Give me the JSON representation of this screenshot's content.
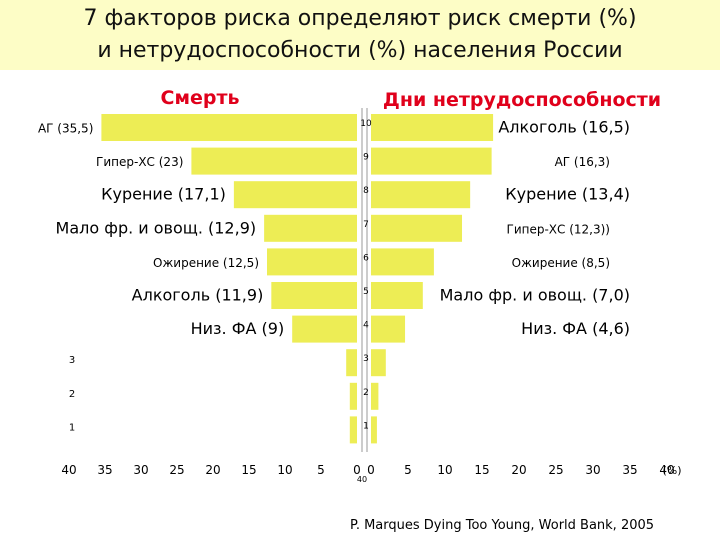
{
  "header": {
    "title_line1": "7  факторов риска определяют риск смерти (%)",
    "title_line2": "и нетрудоспособности (%) населения России"
  },
  "chart_data": {
    "type": "bar",
    "orientation": "horizontal-butterfly",
    "left_title": "Смерть",
    "right_title": "Дни нетрудоспособности",
    "x_ticks_left": [
      "40",
      "35",
      "30",
      "25",
      "20",
      "15",
      "10",
      "5",
      "0"
    ],
    "x_ticks_right": [
      "0",
      "5",
      "10",
      "15",
      "20",
      "25",
      "30",
      "35",
      "40"
    ],
    "x_unit": "(%)",
    "x_extra_label": "40",
    "row_ticks": [
      "10",
      "9",
      "8",
      "7",
      "6",
      "5",
      "4",
      "3",
      "2",
      "1"
    ],
    "left_row_ticks": [
      "3",
      "2",
      "1"
    ],
    "death_series": [
      {
        "label": "АГ (35,5)",
        "value": 35.5
      },
      {
        "label": "Гипер-ХС (23)",
        "value": 23
      },
      {
        "label": "Курение (17,1)",
        "value": 17.1
      },
      {
        "label": "Мало фр. и овощ.  (12,9)",
        "value": 12.9
      },
      {
        "label": "Ожирение (12,5)",
        "value": 12.5
      },
      {
        "label": "Алкоголь (11,9)",
        "value": 11.9
      },
      {
        "label": "Низ. ФА (9)",
        "value": 9
      },
      {
        "label": "",
        "value": 1.5
      },
      {
        "label": "",
        "value": 1.0
      },
      {
        "label": "",
        "value": 1.0
      }
    ],
    "disability_series": [
      {
        "label": "Алкоголь (16,5)",
        "value": 16.5
      },
      {
        "label": "АГ (16,3)",
        "value": 16.3
      },
      {
        "label": "Курение (13,4)",
        "value": 13.4
      },
      {
        "label": "Гипер-ХС (12,3))",
        "value": 12.3
      },
      {
        "label": "Ожирение (8,5)",
        "value": 8.5
      },
      {
        "label": "Мало фр. и овощ. (7,0)",
        "value": 7.0
      },
      {
        "label": "Низ. ФА (4,6)",
        "value": 4.6
      },
      {
        "label": "",
        "value": 2.0
      },
      {
        "label": "",
        "value": 1.0
      },
      {
        "label": "",
        "value": 0.8
      }
    ],
    "bar_color": "#eded55",
    "xlim": [
      0,
      40
    ]
  },
  "footer": {
    "source": "P. Marques Dying Too Young, World Bank,  2005"
  }
}
